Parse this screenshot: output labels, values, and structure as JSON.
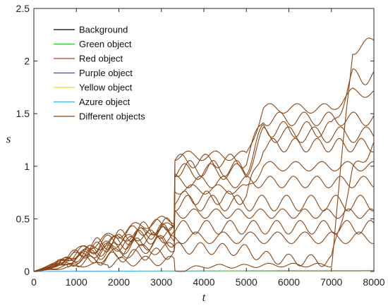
{
  "chart_data": {
    "type": "line",
    "xlabel": "t",
    "ylabel": "s",
    "xlim": [
      0,
      8000
    ],
    "ylim": [
      0,
      2.5
    ],
    "xticks": [
      "0",
      "1000",
      "2000",
      "3000",
      "4000",
      "5000",
      "6000",
      "7000",
      "8000"
    ],
    "yticks": [
      "0",
      "0.5",
      "1",
      "1.5",
      "2",
      "2.5"
    ],
    "grid": false,
    "legend_position": "top-left",
    "series": [
      {
        "name": "Background",
        "color": "#000000",
        "x": [
          0,
          8000
        ],
        "y": [
          0,
          0
        ]
      },
      {
        "name": "Green object",
        "color": "#2ec02e",
        "x": [
          0,
          8000
        ],
        "y": [
          0,
          0
        ]
      },
      {
        "name": "Red object",
        "color": "#c0392b",
        "x": [
          0,
          8000
        ],
        "y": [
          0,
          0
        ]
      },
      {
        "name": "Purple object",
        "color": "#4b3bd6",
        "x": [
          0,
          4000,
          8000
        ],
        "y": [
          0,
          0.004,
          0.008
        ]
      },
      {
        "name": "Yellow object",
        "color": "#e8e02a",
        "x": [
          0,
          8000
        ],
        "y": [
          0,
          0
        ]
      },
      {
        "name": "Azure object",
        "color": "#3fb0e0",
        "x": [
          0,
          4000,
          8000
        ],
        "y": [
          0,
          0.006,
          0.01
        ]
      },
      {
        "name": "Different objects",
        "color": "#8b4513",
        "x": [
          0,
          500,
          1000,
          1500,
          2000,
          2500,
          3000,
          3300,
          3320,
          4000,
          5000,
          5400,
          6000,
          7000,
          7500,
          8000
        ],
        "curves": [
          [
            0,
            0.06,
            0.15,
            0.22,
            0.28,
            0.34,
            0.36,
            0.38,
            0.55,
            0.55,
            0.55,
            0.55,
            0.55,
            0.55,
            0.55,
            0.55
          ],
          [
            0,
            0.05,
            0.13,
            0.19,
            0.25,
            0.3,
            0.32,
            0.34,
            0.85,
            0.85,
            0.85,
            0.85,
            0.85,
            0.85,
            0.85,
            0.85
          ],
          [
            0,
            0.07,
            0.17,
            0.25,
            0.32,
            0.4,
            0.44,
            0.46,
            1.05,
            1.05,
            1.05,
            1.45,
            1.45,
            1.45,
            1.45,
            1.45
          ],
          [
            0,
            0.04,
            0.11,
            0.16,
            0.2,
            0.24,
            0.26,
            0.26,
            0.95,
            0.95,
            0.95,
            1.3,
            1.3,
            1.3,
            1.3,
            1.3
          ],
          [
            0,
            0.08,
            0.19,
            0.28,
            0.36,
            0.44,
            0.48,
            0.5,
            1.1,
            1.1,
            1.1,
            1.55,
            1.55,
            1.55,
            1.7,
            1.7
          ],
          [
            0,
            0.03,
            0.08,
            0.11,
            0.14,
            0.16,
            0.17,
            0.17,
            0.22,
            0.22,
            0.2,
            0.14,
            0.11,
            0.1,
            0.95,
            1.2
          ],
          [
            0,
            0.05,
            0.12,
            0.17,
            0.22,
            0.26,
            0.28,
            0.3,
            0.42,
            0.42,
            0.42,
            0.42,
            0.42,
            0.42,
            0.42,
            0.42
          ],
          [
            0,
            0.06,
            0.14,
            0.21,
            0.27,
            0.32,
            0.35,
            0.36,
            0.65,
            0.65,
            0.65,
            0.65,
            0.65,
            0.65,
            0.65,
            0.65
          ],
          [
            0,
            0.07,
            0.16,
            0.24,
            0.31,
            0.37,
            0.41,
            0.43,
            0.78,
            0.78,
            0.78,
            1.0,
            1.0,
            1.0,
            1.0,
            1.0
          ],
          [
            0,
            0.04,
            0.09,
            0.13,
            0.17,
            0.2,
            0.22,
            0.22,
            0.32,
            0.32,
            0.32,
            0.32,
            0.32,
            0.32,
            0.32,
            0.32
          ],
          [
            0,
            0.06,
            0.15,
            0.22,
            0.29,
            0.35,
            0.39,
            0.4,
            0.7,
            0.7,
            0.7,
            1.2,
            1.2,
            1.2,
            1.2,
            1.2
          ],
          [
            0,
            0.07,
            0.17,
            0.25,
            0.32,
            0.39,
            0.43,
            0.44,
            0.98,
            0.98,
            0.98,
            1.35,
            1.35,
            1.35,
            1.85,
            1.85
          ],
          [
            0,
            0.02,
            0.05,
            0.07,
            0.09,
            0.1,
            0.1,
            0.1,
            0.0,
            0.05,
            0.05,
            0.06,
            0.06,
            0.06,
            2.1,
            2.2
          ]
        ]
      }
    ]
  }
}
